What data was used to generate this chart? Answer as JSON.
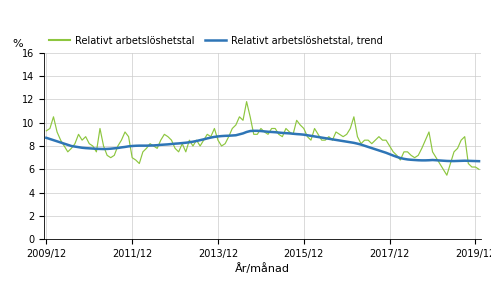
{
  "ylabel": "%",
  "xlabel": "År/månad",
  "legend_labels": [
    "Relativt arbetslöshetstal",
    "Relativt arbetslöshetstal, trend"
  ],
  "line_color": "#8dc63f",
  "trend_color": "#2e75b6",
  "ylim": [
    0,
    16
  ],
  "yticks": [
    0,
    2,
    4,
    6,
    8,
    10,
    12,
    14,
    16
  ],
  "xtick_labels": [
    "2009/12",
    "2011/12",
    "2013/12",
    "2015/12",
    "2017/12",
    "2019/12"
  ],
  "grid_color": "#cccccc",
  "monthly_values": [
    9.3,
    9.5,
    10.5,
    9.2,
    8.5,
    8.0,
    7.5,
    7.8,
    8.2,
    9.0,
    8.5,
    8.8,
    8.2,
    8.0,
    7.5,
    9.5,
    8.0,
    7.2,
    7.0,
    7.2,
    8.0,
    8.5,
    9.2,
    8.8,
    7.0,
    6.8,
    6.5,
    7.5,
    7.8,
    8.2,
    8.0,
    7.8,
    8.5,
    9.0,
    8.8,
    8.5,
    7.8,
    7.5,
    8.2,
    7.5,
    8.5,
    8.0,
    8.5,
    8.0,
    8.5,
    9.0,
    8.8,
    9.5,
    8.5,
    8.0,
    8.2,
    8.8,
    9.5,
    9.8,
    10.5,
    10.2,
    11.8,
    10.5,
    9.0,
    9.0,
    9.5,
    9.2,
    9.0,
    9.5,
    9.5,
    9.0,
    8.8,
    9.5,
    9.2,
    9.0,
    10.2,
    9.8,
    9.5,
    8.8,
    8.5,
    9.5,
    9.0,
    8.5,
    8.5,
    8.8,
    8.5,
    9.2,
    9.0,
    8.8,
    9.0,
    9.5,
    10.5,
    8.8,
    8.2,
    8.5,
    8.5,
    8.2,
    8.5,
    8.8,
    8.5,
    8.5,
    8.0,
    7.5,
    7.2,
    6.8,
    7.5,
    7.5,
    7.2,
    7.0,
    7.2,
    7.8,
    8.5,
    9.2,
    7.5,
    7.0,
    6.5,
    6.0,
    5.5,
    6.5,
    7.5,
    7.8,
    8.5,
    8.8,
    6.5,
    6.2,
    6.2,
    6.0
  ],
  "trend_values": [
    8.7,
    8.6,
    8.5,
    8.4,
    8.3,
    8.2,
    8.1,
    8.0,
    7.95,
    7.9,
    7.85,
    7.82,
    7.8,
    7.78,
    7.76,
    7.75,
    7.74,
    7.75,
    7.77,
    7.8,
    7.83,
    7.88,
    7.92,
    7.97,
    8.0,
    8.02,
    8.03,
    8.03,
    8.03,
    8.04,
    8.05,
    8.07,
    8.1,
    8.12,
    8.14,
    8.17,
    8.2,
    8.22,
    8.25,
    8.28,
    8.32,
    8.37,
    8.43,
    8.5,
    8.57,
    8.65,
    8.72,
    8.78,
    8.82,
    8.85,
    8.87,
    8.88,
    8.9,
    8.92,
    9.0,
    9.08,
    9.2,
    9.28,
    9.3,
    9.3,
    9.28,
    9.25,
    9.22,
    9.2,
    9.18,
    9.15,
    9.12,
    9.1,
    9.08,
    9.05,
    9.02,
    9.0,
    8.97,
    8.92,
    8.87,
    8.82,
    8.77,
    8.72,
    8.67,
    8.62,
    8.57,
    8.52,
    8.47,
    8.42,
    8.37,
    8.32,
    8.27,
    8.2,
    8.12,
    8.02,
    7.92,
    7.82,
    7.72,
    7.62,
    7.52,
    7.42,
    7.3,
    7.18,
    7.07,
    6.97,
    6.9,
    6.85,
    6.82,
    6.8,
    6.78,
    6.77,
    6.77,
    6.78,
    6.8,
    6.78,
    6.76,
    6.74,
    6.72,
    6.71,
    6.71,
    6.72,
    6.73,
    6.74,
    6.73,
    6.72,
    6.71,
    6.7
  ]
}
